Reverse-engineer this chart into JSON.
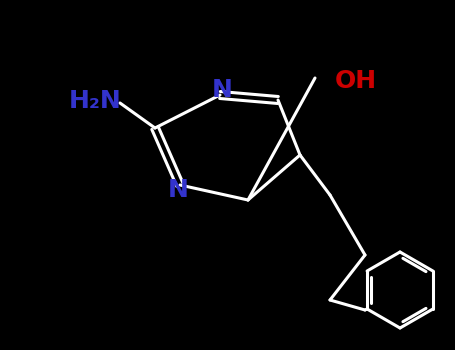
{
  "background_color": "#000000",
  "atom_color_N": "#3333cc",
  "atom_color_O": "#cc0000",
  "atom_color_C": "#000000",
  "bond_color": "#000000",
  "line_color": "#ffffff",
  "label_NH2": "H₂N",
  "label_N1": "N",
  "label_N3": "N",
  "label_OH": "OH",
  "figsize": [
    4.55,
    3.5
  ],
  "dpi": 100
}
